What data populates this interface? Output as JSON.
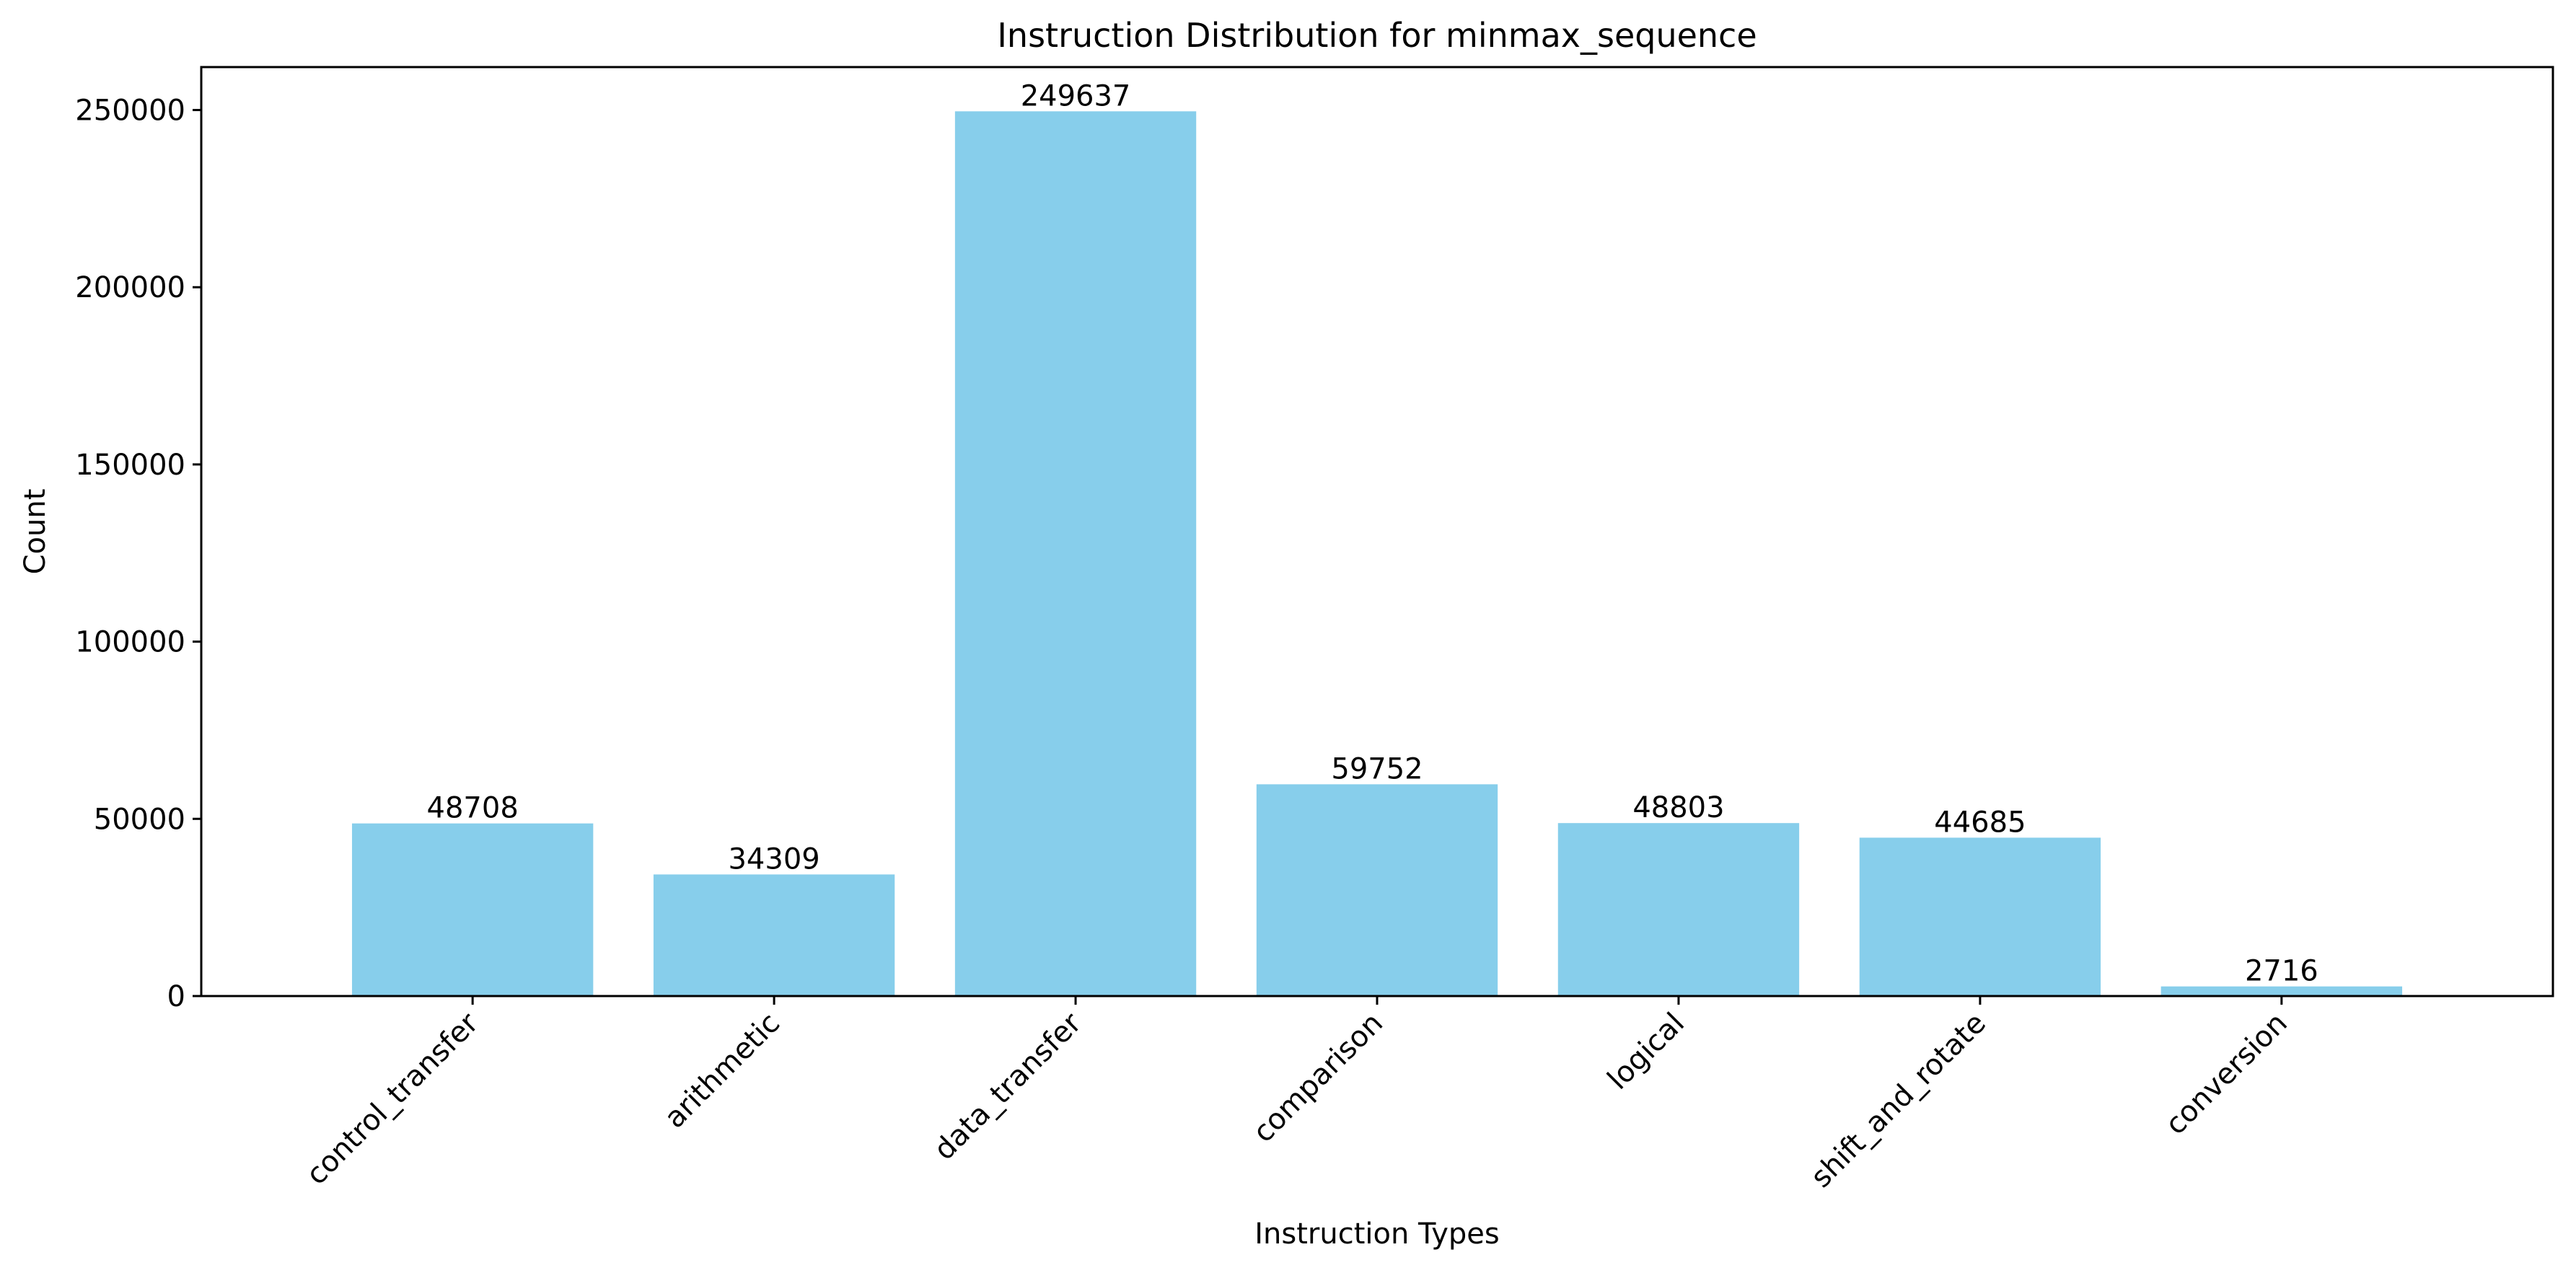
{
  "chart_data": {
    "type": "bar",
    "title": "Instruction Distribution for minmax_sequence",
    "xlabel": "Instruction Types",
    "ylabel": "Count",
    "categories": [
      "control_transfer",
      "arithmetic",
      "data_transfer",
      "comparison",
      "logical",
      "shift_and_rotate",
      "conversion"
    ],
    "values": [
      48708,
      34309,
      249637,
      59752,
      48803,
      44685,
      2716
    ],
    "ylim": [
      0,
      262119
    ],
    "yticks": [
      0,
      50000,
      100000,
      150000,
      200000,
      250000
    ],
    "bar_color": "#87ceeb",
    "grid": false,
    "legend": "none"
  }
}
